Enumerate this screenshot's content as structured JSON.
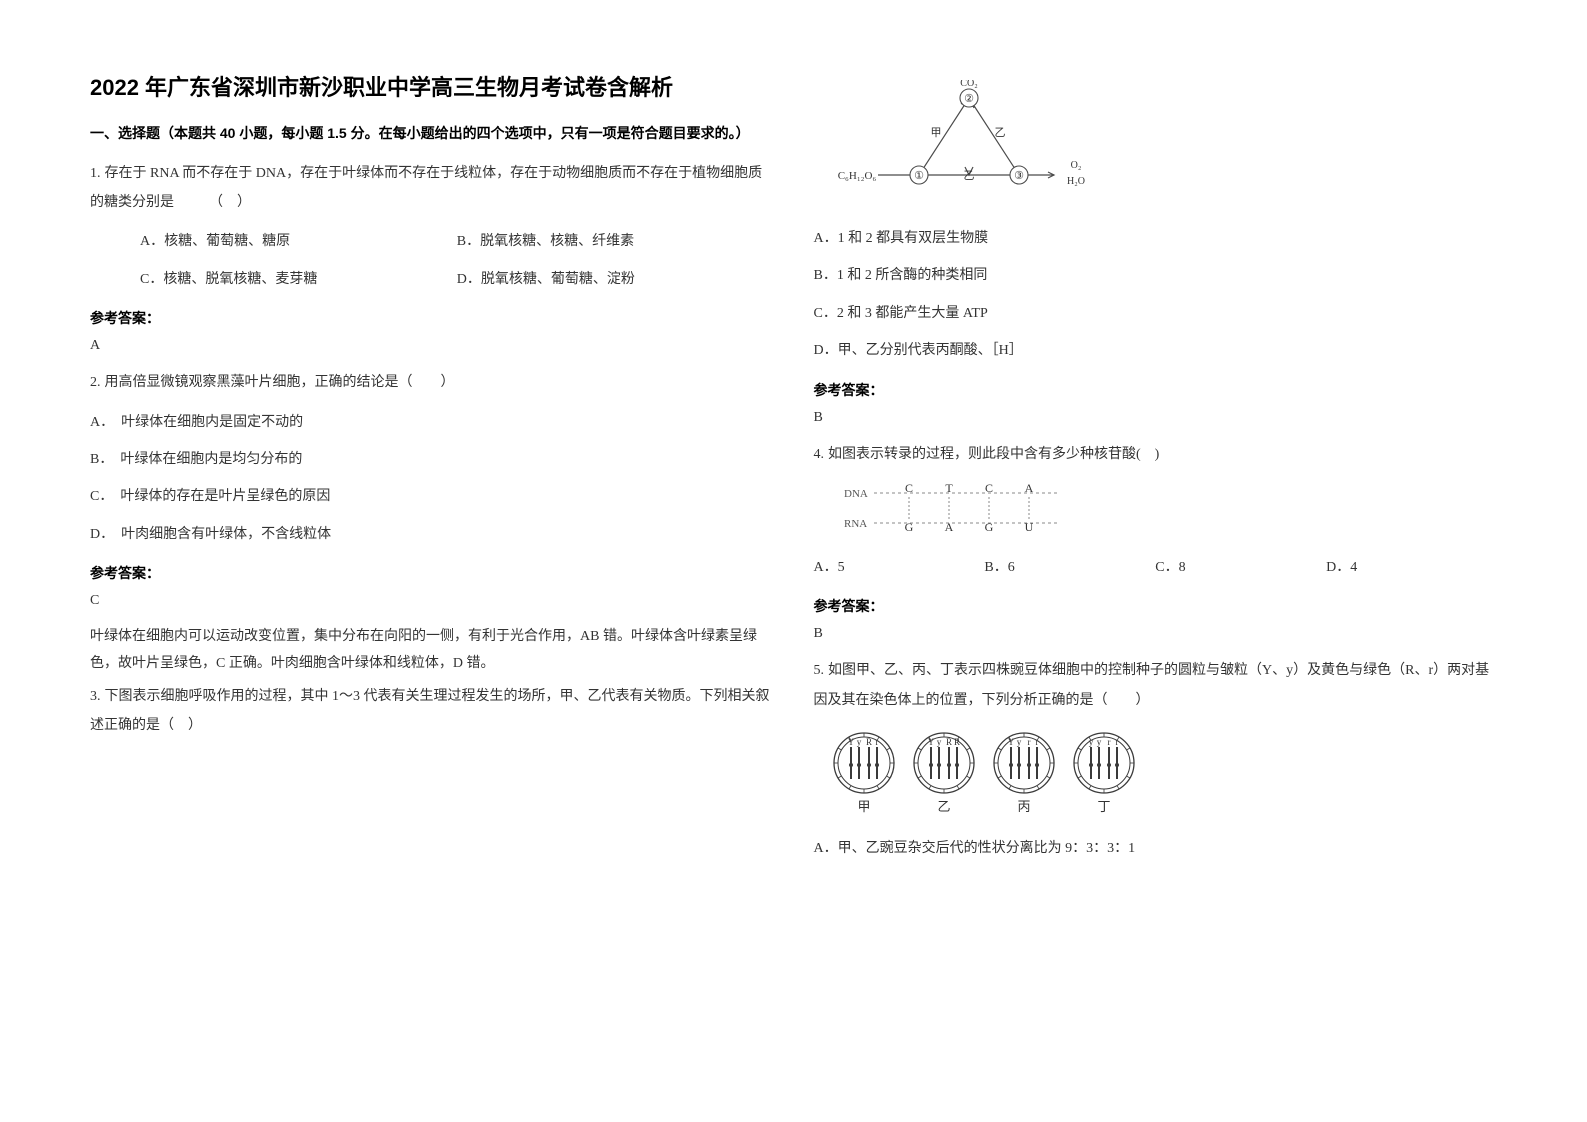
{
  "title": "2022 年广东省深圳市新沙职业中学高三生物月考试卷含解析",
  "section1_heading": "一、选择题（本题共 40 小题，每小题 1.5 分。在每小题给出的四个选项中，只有一项是符合题目要求的。）",
  "ref_ans_label": "参考答案：",
  "q1": {
    "no": "1.",
    "stem": "存在于 RNA 而不存在于 DNA，存在于叶绿体而不存在于线粒体，存在于动物细胞质而不存在于植物细胞质的糖类分别是　　　（　）",
    "optA": "A．核糖、葡萄糖、糖原",
    "optB": "B．脱氧核糖、核糖、纤维素",
    "optC": "C．核糖、脱氧核糖、麦芽糖",
    "optD": "D．脱氧核糖、葡萄糖、淀粉",
    "ans": "A"
  },
  "q2": {
    "no": "2.",
    "stem": "用高倍显微镜观察黑藻叶片细胞，正确的结论是（　　）",
    "optA": "A．　叶绿体在细胞内是固定不动的",
    "optB": "B．　叶绿体在细胞内是均匀分布的",
    "optC": "C．　叶绿体的存在是叶片呈绿色的原因",
    "optD": "D．　叶肉细胞含有叶绿体，不含线粒体",
    "ans": "C",
    "explain": "叶绿体在细胞内可以运动改变位置，集中分布在向阳的一侧，有利于光合作用，AB 错。叶绿体含叶绿素呈绿色，故叶片呈绿色，C 正确。叶肉细胞含叶绿体和线粒体，D 错。"
  },
  "q3": {
    "no": "3.",
    "stem": "下图表示细胞呼吸作用的过程，其中 1～3 代表有关生理过程发生的场所，甲、乙代表有关物质。下列相关叙述正确的是（　）",
    "optA": "A．1 和 2 都具有双层生物膜",
    "optB": "B．1 和 2 所含酶的种类相同",
    "optC": "C．2 和 3 都能产生大量 ATP",
    "optD": "D．甲、乙分别代表丙酮酸、［H］",
    "ans": "B",
    "fig": {
      "c6": "C₆H₁₂O₆",
      "co2": "CO₂",
      "o2": "O₂",
      "h2o": "H₂O",
      "a": "甲",
      "b": "乙",
      "z": "乙",
      "n1": "①",
      "n2": "②",
      "n3": "③",
      "stroke": "#4b4b4b"
    }
  },
  "q4": {
    "no": "4.",
    "stem": "如图表示转录的过程，则此段中含有多少种核苷酸(　)",
    "optA": "A．5",
    "optB": "B．6",
    "optC": "C．8",
    "optD": "D．4",
    "ans": "B",
    "fig": {
      "dna_label": "DNA",
      "rna_label": "RNA",
      "dna_seq": [
        "C",
        "T",
        "C",
        "A"
      ],
      "rna_seq": [
        "G",
        "A",
        "G",
        "U"
      ],
      "stroke": "#5a5a5a"
    }
  },
  "q5": {
    "no": "5.",
    "stem": "如图甲、乙、丙、丁表示四株豌豆体细胞中的控制种子的圆粒与皱粒（Y、y）及黄色与绿色（R、r）两对基因及其在染色体上的位置，下列分析正确的是（　　）",
    "optA": "A．甲、乙豌豆杂交后代的性状分离比为 9：3：3：1",
    "fig": {
      "labels": [
        "甲",
        "乙",
        "丙",
        "丁"
      ],
      "genotypes": [
        [
          "Y",
          "y",
          "R",
          "r"
        ],
        [
          "Y",
          "y",
          "R",
          "R"
        ],
        [
          "Y",
          "y",
          "r",
          "r"
        ],
        [
          "y",
          "y",
          "r",
          "r"
        ]
      ],
      "stroke": "#3a3a3a"
    }
  }
}
